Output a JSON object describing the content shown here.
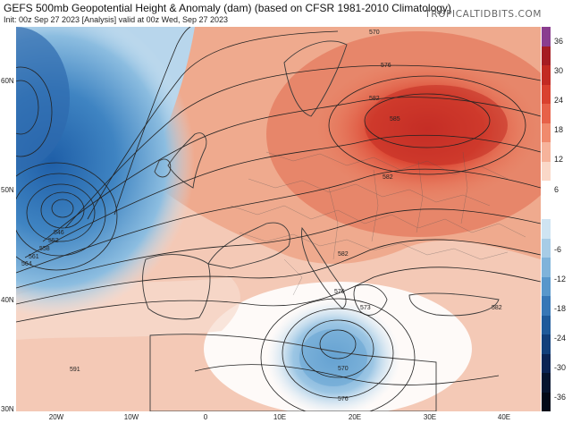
{
  "header": {
    "title": "GEFS 500mb Geopotential Height & Anomaly (dam) (based on CFSR 1981-2010 Climatology)",
    "subtitle": "Init: 00z Sep 27 2023   [Analysis]   valid at 00z Wed, Sep 27 2023",
    "site": "TROPICALTIDBITS.COM"
  },
  "map": {
    "lat_labels": [
      "60N",
      "50N",
      "40N",
      "30N"
    ],
    "lon_labels": [
      "20W",
      "10W",
      "0",
      "10E",
      "20E",
      "30E",
      "40E"
    ],
    "contour_labels": [
      "570",
      "576",
      "582",
      "585",
      "582",
      "546",
      "552",
      "558",
      "561",
      "564",
      "591",
      "582",
      "576",
      "573",
      "570",
      "576",
      "582"
    ]
  },
  "colorbar": {
    "labels": [
      "36",
      "30",
      "24",
      "18",
      "12",
      "6",
      "-6",
      "-12",
      "-18",
      "-24",
      "-30",
      "-36"
    ],
    "colors": [
      "#8a3d8f",
      "#a51d23",
      "#c22b23",
      "#d9412f",
      "#e76149",
      "#f08a6d",
      "#f6b39b",
      "#fad8c8",
      "#ffffff",
      "#ffffff",
      "#cfe4f2",
      "#a7cce6",
      "#7fb3da",
      "#5897cb",
      "#3777b6",
      "#1f5a9a",
      "#123f7a",
      "#0b2454",
      "#06152f",
      "#020a18"
    ]
  }
}
